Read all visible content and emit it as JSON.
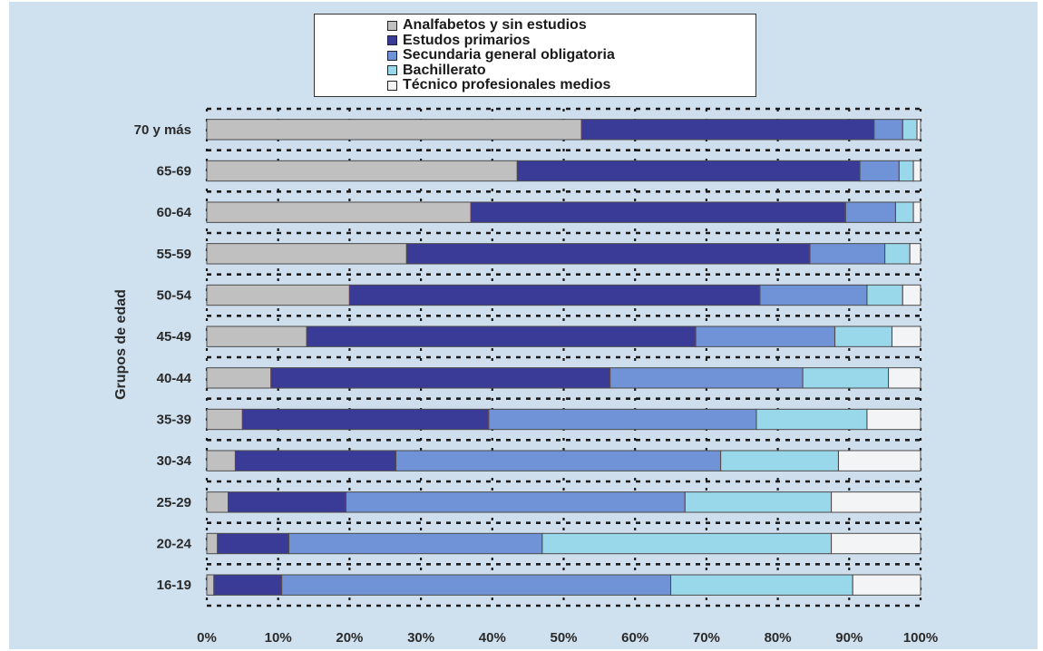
{
  "chart_data": {
    "type": "bar",
    "orientation": "horizontal",
    "stacked": "percent",
    "title": "",
    "xlabel": "",
    "ylabel": "Grupos de edad",
    "xlim": [
      0,
      100
    ],
    "x_ticks": [
      "0%",
      "10%",
      "20%",
      "30%",
      "40%",
      "50%",
      "60%",
      "70%",
      "80%",
      "90%",
      "100%"
    ],
    "grid": true,
    "legend_position": "top",
    "categories": [
      "70 y más",
      "65-69",
      "60-64",
      "55-59",
      "50-54",
      "45-49",
      "40-44",
      "35-39",
      "30-34",
      "25-29",
      "20-24",
      "16-19"
    ],
    "series": [
      {
        "name": "Analfabetos y sin estudios",
        "color": "#c0c0c0",
        "values": [
          52.5,
          43.5,
          37,
          28,
          20,
          14,
          9,
          5,
          4,
          3,
          1.5,
          1
        ]
      },
      {
        "name": "Estudos primarios",
        "color": "#3a3b96",
        "values": [
          41,
          48,
          52.5,
          56.5,
          57.5,
          54.5,
          47.5,
          34.5,
          22.5,
          16.5,
          10,
          9.5
        ]
      },
      {
        "name": "Secundaria general obligatoria",
        "color": "#6f93d6",
        "values": [
          4,
          5.5,
          7,
          10.5,
          15,
          19.5,
          27,
          37.5,
          45.5,
          47.5,
          35.5,
          54.5
        ]
      },
      {
        "name": "Bachillerato",
        "color": "#99d7ea",
        "values": [
          2,
          2,
          2.5,
          3.5,
          5,
          8,
          12,
          15.5,
          16.5,
          20.5,
          40.5,
          25.5
        ]
      },
      {
        "name": "Técnico profesionales medios",
        "color": "#f3f4f6",
        "values": [
          0.5,
          1,
          1,
          1.5,
          2.5,
          4,
          4.5,
          7.5,
          11.5,
          12.5,
          12.5,
          9.5
        ]
      }
    ]
  },
  "colors": {
    "panel_background": "#cfe0ee",
    "plot_background": "#cfdeec",
    "gridline": "#1a1a1a",
    "bar_outline": "#4a4a4a",
    "segment_divider": "#c83c5c"
  }
}
